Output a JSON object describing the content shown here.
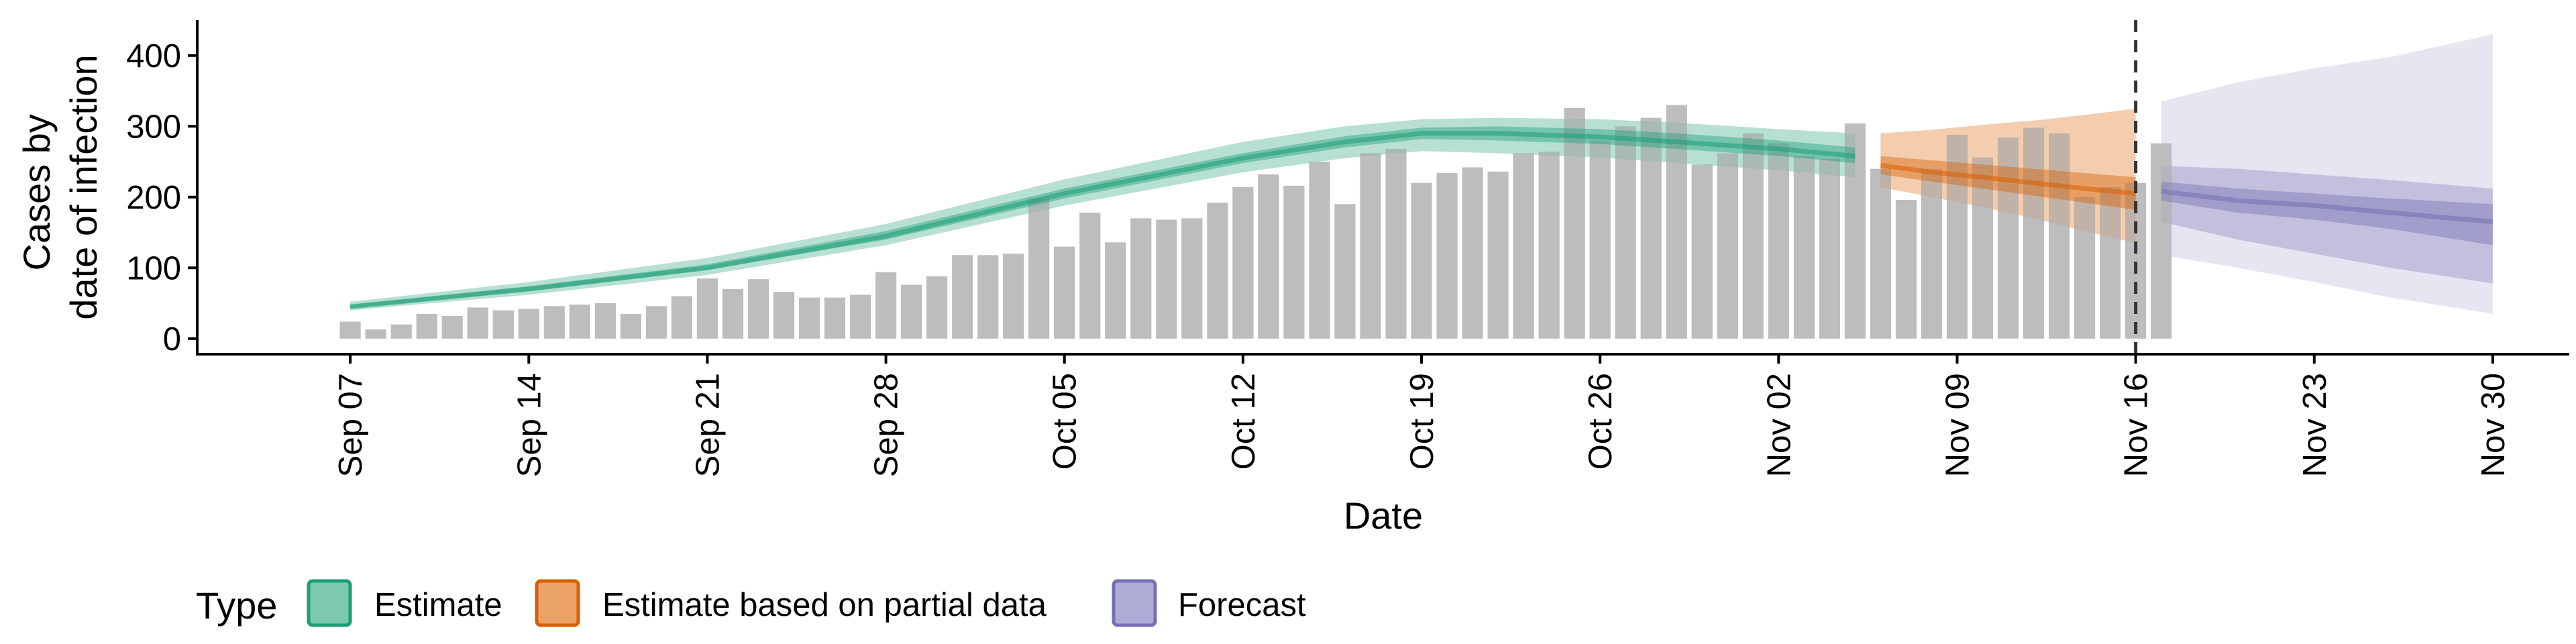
{
  "chart_data": {
    "type": "bar",
    "xlabel": "Date",
    "ylabel_lines": [
      "Cases by",
      "date of infection"
    ],
    "ylim": [
      -22,
      450
    ],
    "xlim": [
      "2020-09-01",
      "2020-12-03"
    ],
    "y_ticks": [
      0,
      100,
      200,
      300,
      400
    ],
    "x_ticks": [
      {
        "date": "2020-09-07",
        "label": "Sep 07"
      },
      {
        "date": "2020-09-14",
        "label": "Sep 14"
      },
      {
        "date": "2020-09-21",
        "label": "Sep 21"
      },
      {
        "date": "2020-09-28",
        "label": "Sep 28"
      },
      {
        "date": "2020-10-05",
        "label": "Oct 05"
      },
      {
        "date": "2020-10-12",
        "label": "Oct 12"
      },
      {
        "date": "2020-10-19",
        "label": "Oct 19"
      },
      {
        "date": "2020-10-26",
        "label": "Oct 26"
      },
      {
        "date": "2020-11-02",
        "label": "Nov 02"
      },
      {
        "date": "2020-11-09",
        "label": "Nov 09"
      },
      {
        "date": "2020-11-16",
        "label": "Nov 16"
      },
      {
        "date": "2020-11-23",
        "label": "Nov 23"
      },
      {
        "date": "2020-11-30",
        "label": "Nov 30"
      }
    ],
    "bars": {
      "start_date": "2020-09-07",
      "color": "#bdbdbd",
      "values": [
        24,
        13,
        20,
        35,
        32,
        44,
        40,
        42,
        46,
        48,
        50,
        35,
        46,
        60,
        85,
        70,
        84,
        66,
        58,
        58,
        62,
        94,
        76,
        88,
        118,
        118,
        120,
        198,
        130,
        178,
        136,
        170,
        168,
        170,
        192,
        214,
        232,
        216,
        250,
        190,
        262,
        268,
        220,
        234,
        242,
        236,
        262,
        264,
        326,
        280,
        300,
        312,
        330,
        246,
        262,
        290,
        276,
        258,
        254,
        304,
        240,
        196,
        240,
        288,
        256,
        284,
        298,
        290,
        200,
        214,
        220,
        276
      ]
    },
    "series": [
      {
        "name": "Estimate",
        "color": "#1b9e77",
        "x": [
          "2020-09-07",
          "2020-09-14",
          "2020-09-21",
          "2020-09-28",
          "2020-10-05",
          "2020-10-12",
          "2020-10-16",
          "2020-10-19",
          "2020-10-22",
          "2020-10-26",
          "2020-10-29",
          "2020-11-02",
          "2020-11-05"
        ],
        "median": [
          45,
          70,
          100,
          145,
          205,
          255,
          278,
          290,
          290,
          285,
          278,
          268,
          258
        ],
        "inner_lower": [
          43,
          67,
          97,
          140,
          198,
          248,
          270,
          282,
          280,
          275,
          268,
          258,
          248
        ],
        "inner_upper": [
          48,
          74,
          105,
          152,
          212,
          262,
          286,
          298,
          300,
          296,
          290,
          280,
          270
        ],
        "outer_lower": [
          40,
          62,
          90,
          132,
          188,
          235,
          255,
          265,
          262,
          256,
          248,
          238,
          228
        ],
        "outer_upper": [
          52,
          80,
          114,
          162,
          225,
          278,
          300,
          310,
          312,
          310,
          305,
          296,
          290
        ]
      },
      {
        "name": "Estimate based on partial data",
        "color": "#d95f02",
        "x": [
          "2020-11-06",
          "2020-11-08",
          "2020-11-10",
          "2020-11-12",
          "2020-11-14",
          "2020-11-16"
        ],
        "median": [
          245,
          235,
          228,
          220,
          212,
          205
        ],
        "inner_lower": [
          232,
          222,
          212,
          202,
          192,
          182
        ],
        "inner_upper": [
          258,
          252,
          246,
          240,
          234,
          228
        ],
        "outer_lower": [
          214,
          200,
          186,
          170,
          152,
          135
        ],
        "outer_upper": [
          290,
          295,
          302,
          308,
          316,
          325
        ]
      },
      {
        "name": "Forecast",
        "color": "#7570b3",
        "x": [
          "2020-11-17",
          "2020-11-20",
          "2020-11-23",
          "2020-11-26",
          "2020-11-30"
        ],
        "median": [
          208,
          195,
          188,
          178,
          165
        ],
        "inner_lower": [
          195,
          178,
          168,
          155,
          132
        ],
        "inner_upper": [
          222,
          212,
          205,
          198,
          190
        ],
        "outer_lower": [
          165,
          140,
          120,
          100,
          78
        ],
        "outer_upper": [
          244,
          240,
          232,
          224,
          212
        ],
        "wide_lower": [
          118,
          100,
          80,
          58,
          35
        ],
        "wide_upper": [
          335,
          362,
          382,
          398,
          430
        ]
      }
    ],
    "vline": "2020-11-16",
    "legend": {
      "title": "Type",
      "position": "bottom",
      "items": [
        {
          "label": "Estimate",
          "fill": "#7dc9b0",
          "stroke": "#1b9e77"
        },
        {
          "label": "Estimate based on partial data",
          "fill": "#eba266",
          "stroke": "#d95f02"
        },
        {
          "label": "Forecast",
          "fill": "#aeabd6",
          "stroke": "#7570b3"
        }
      ]
    }
  }
}
